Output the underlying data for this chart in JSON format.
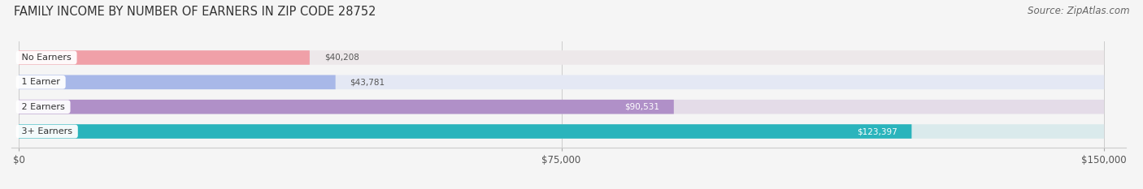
{
  "title": "FAMILY INCOME BY NUMBER OF EARNERS IN ZIP CODE 28752",
  "source": "Source: ZipAtlas.com",
  "categories": [
    "No Earners",
    "1 Earner",
    "2 Earners",
    "3+ Earners"
  ],
  "values": [
    40208,
    43781,
    90531,
    123397
  ],
  "labels": [
    "$40,208",
    "$43,781",
    "$90,531",
    "$123,397"
  ],
  "bar_colors": [
    "#f0a0a8",
    "#a8b8e8",
    "#b090c8",
    "#2ab4bc"
  ],
  "bar_bg_colors": [
    "#ede8ea",
    "#e4e8f4",
    "#e4dce8",
    "#daeaec"
  ],
  "label_colors": [
    "#555555",
    "#555555",
    "#ffffff",
    "#ffffff"
  ],
  "label_bg_colors": [
    null,
    null,
    "#b090c8",
    "#2ab4bc"
  ],
  "xmax": 150000,
  "xticks": [
    0,
    75000,
    150000
  ],
  "xticklabels": [
    "$0",
    "$75,000",
    "$150,000"
  ],
  "background_color": "#f5f5f5",
  "title_fontsize": 10.5,
  "source_fontsize": 8.5
}
